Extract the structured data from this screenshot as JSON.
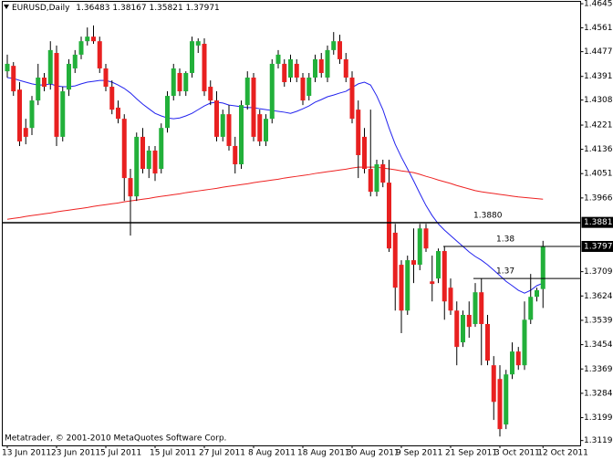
{
  "chart_data": {
    "type": "candlestick",
    "title": "EURUSD,Daily",
    "footer": "Metatrader, © 2001-2010 MetaQuotes Software Corp.",
    "categories": [
      "13 Jun 2011",
      null,
      null,
      null,
      null,
      null,
      null,
      null,
      "23 Jun 2011",
      null,
      null,
      null,
      null,
      null,
      null,
      null,
      "5 Jul 2011",
      null,
      null,
      null,
      null,
      null,
      null,
      null,
      "15 Jul 2011",
      null,
      null,
      null,
      null,
      null,
      null,
      null,
      "27 Jul 2011",
      null,
      null,
      null,
      null,
      null,
      null,
      null,
      "8 Aug 2011",
      null,
      null,
      null,
      null,
      null,
      null,
      null,
      "18 Aug 2011",
      null,
      null,
      null,
      null,
      null,
      null,
      null,
      "30 Aug 2011",
      null,
      null,
      null,
      null,
      null,
      null,
      null,
      "9 Sep 2011",
      null,
      null,
      null,
      null,
      null,
      null,
      null,
      "21 Sep 2011",
      null,
      null,
      null,
      null,
      null,
      null,
      null,
      "3 Oct 2011",
      null,
      null,
      null,
      null,
      null,
      null,
      "12 Oct 2011"
    ],
    "open": [
      1.4409,
      1.4428,
      1.4345,
      1.4211,
      1.4211,
      1.4307,
      1.4387,
      1.4365,
      1.4473,
      1.418,
      1.4345,
      1.4419,
      1.4467,
      1.4514,
      1.453,
      1.4514,
      1.4419,
      1.4355,
      1.4282,
      1.4243,
      1.4036,
      1.3972,
      1.418,
      1.4068,
      1.4132,
      1.4068,
      1.4211,
      1.4323,
      1.4403,
      1.4339,
      1.4403,
      1.4499,
      1.4505,
      1.4355,
      1.4307,
      1.418,
      1.4259,
      1.4148,
      1.4084,
      1.4291,
      1.4387,
      1.4259,
      1.4164,
      1.4243,
      1.4435,
      1.4435,
      1.4387,
      1.4435,
      1.4387,
      1.4323,
      1.4387,
      1.4451,
      1.4387,
      1.4483,
      1.4514,
      1.4451,
      1.4387,
      1.4275,
      1.418,
      1.4068,
      1.3988,
      1.4084,
      1.402,
      1.3845,
      1.3733,
      1.3573,
      1.3749,
      1.3733,
      1.386,
      1.3675,
      1.3685,
      1.3781,
      1.3653,
      1.3573,
      1.3462,
      1.3558,
      1.3526,
      1.3637,
      1.3526,
      1.3382,
      1.3334,
      1.3175,
      1.335,
      1.343,
      1.3382,
      1.3541,
      1.3621,
      1.36483
    ],
    "high": [
      1.4467,
      1.4441,
      1.4371,
      1.4243,
      1.4323,
      1.4435,
      1.4403,
      1.4514,
      1.4499,
      1.4355,
      1.4451,
      1.4483,
      1.453,
      1.4562,
      1.4569,
      1.453,
      1.4435,
      1.4377,
      1.4307,
      1.4259,
      1.4068,
      1.4195,
      1.4211,
      1.4148,
      1.4148,
      1.4227,
      1.4339,
      1.4435,
      1.4419,
      1.4409,
      1.453,
      1.4524,
      1.4524,
      1.4377,
      1.4339,
      1.4275,
      1.4291,
      1.418,
      1.4307,
      1.4409,
      1.4403,
      1.4275,
      1.4259,
      1.4451,
      1.4483,
      1.4451,
      1.4467,
      1.4451,
      1.4403,
      1.4403,
      1.4467,
      1.4473,
      1.4499,
      1.4546,
      1.4537,
      1.4473,
      1.4409,
      1.4307,
      1.4211,
      1.4275,
      1.41,
      1.41,
      1.41,
      1.3876,
      1.3749,
      1.3765,
      1.386,
      1.3876,
      1.3876,
      1.3765,
      1.379,
      1.3797,
      1.3685,
      1.3605,
      1.3573,
      1.3605,
      1.3669,
      1.3685,
      1.3558,
      1.3414,
      1.3382,
      1.3366,
      1.3462,
      1.3446,
      1.3605,
      1.3701,
      1.3653,
      1.38167
    ],
    "low": [
      1.4387,
      1.4323,
      1.4148,
      1.4154,
      1.4186,
      1.4291,
      1.4339,
      1.4345,
      1.4148,
      1.4164,
      1.4323,
      1.4403,
      1.4451,
      1.4499,
      1.4505,
      1.4403,
      1.4339,
      1.4259,
      1.4227,
      1.3956,
      1.3835,
      1.3956,
      1.4052,
      1.4036,
      1.4026,
      1.4052,
      1.4195,
      1.4307,
      1.4323,
      1.4323,
      1.4387,
      1.4473,
      1.4323,
      1.4291,
      1.4164,
      1.4164,
      1.4132,
      1.4052,
      1.4068,
      1.4275,
      1.4164,
      1.4148,
      1.4148,
      1.4227,
      1.4419,
      1.4355,
      1.4371,
      1.4371,
      1.4291,
      1.4307,
      1.4371,
      1.4387,
      1.4371,
      1.4467,
      1.4435,
      1.4371,
      1.4227,
      1.4036,
      1.4052,
      1.3972,
      1.3972,
      1.4004,
      1.3778,
      1.3573,
      1.3494,
      1.3558,
      1.3669,
      1.3714,
      1.3778,
      1.3605,
      1.3669,
      1.3541,
      1.3558,
      1.3382,
      1.3446,
      1.3478,
      1.3516,
      1.3382,
      1.3382,
      1.3191,
      1.3133,
      1.3159,
      1.3334,
      1.3366,
      1.3366,
      1.3526,
      1.3605,
      1.35821
    ],
    "close": [
      1.4435,
      1.4339,
      1.4164,
      1.418,
      1.4307,
      1.4387,
      1.4355,
      1.4483,
      1.418,
      1.4339,
      1.4435,
      1.4467,
      1.4514,
      1.453,
      1.4514,
      1.4419,
      1.4355,
      1.4275,
      1.4243,
      1.4036,
      1.3972,
      1.418,
      1.4068,
      1.4132,
      1.4052,
      1.4211,
      1.4323,
      1.4419,
      1.4339,
      1.4403,
      1.4514,
      1.4514,
      1.4339,
      1.4307,
      1.418,
      1.4259,
      1.4148,
      1.4084,
      1.4291,
      1.4387,
      1.418,
      1.4164,
      1.4243,
      1.4435,
      1.4467,
      1.4371,
      1.4451,
      1.4387,
      1.4307,
      1.4387,
      1.4451,
      1.4403,
      1.4483,
      1.4514,
      1.4451,
      1.4387,
      1.4243,
      1.4116,
      1.4068,
      1.3988,
      1.4084,
      1.402,
      1.379,
      1.3653,
      1.3573,
      1.3749,
      1.3733,
      1.386,
      1.379,
      1.3666,
      1.3781,
      1.3605,
      1.3573,
      1.3446,
      1.3558,
      1.3516,
      1.3637,
      1.3526,
      1.3398,
      1.3254,
      1.3159,
      1.335,
      1.343,
      1.3382,
      1.3541,
      1.3621,
      1.3644,
      1.37971
    ],
    "series": [
      {
        "color": "#2222ee",
        "values": [
          1.4387,
          1.4384,
          1.4377,
          1.4371,
          1.4365,
          1.4361,
          1.4361,
          1.4365,
          1.4358,
          1.4355,
          1.4355,
          1.4358,
          1.4365,
          1.4371,
          1.4374,
          1.4377,
          1.4377,
          1.4371,
          1.4361,
          1.4349,
          1.4333,
          1.4313,
          1.4294,
          1.4278,
          1.4262,
          1.4253,
          1.4246,
          1.4243,
          1.4246,
          1.4253,
          1.4262,
          1.4275,
          1.4288,
          1.4298,
          1.4301,
          1.4298,
          1.4291,
          1.4288,
          1.4285,
          1.4282,
          1.4282,
          1.4278,
          1.4275,
          1.4272,
          1.4269,
          1.4266,
          1.4262,
          1.4269,
          1.4278,
          1.4288,
          1.4301,
          1.431,
          1.432,
          1.4326,
          1.4333,
          1.4339,
          1.4352,
          1.4365,
          1.4371,
          1.4361,
          1.4323,
          1.4275,
          1.4211,
          1.4154,
          1.4109,
          1.4068,
          1.4026,
          1.3982,
          1.394,
          1.3905,
          1.3876,
          1.3854,
          1.3835,
          1.3816,
          1.3797,
          1.3778,
          1.3762,
          1.3749,
          1.3733,
          1.3714,
          1.3695,
          1.3675,
          1.366,
          1.3644,
          1.3634,
          1.3644,
          1.366,
          1.3669
        ]
      },
      {
        "color": "#ee2222",
        "values": [
          1.3892,
          1.3895,
          1.3898,
          1.3902,
          1.3905,
          1.3908,
          1.3911,
          1.3914,
          1.3918,
          1.3921,
          1.3924,
          1.3927,
          1.393,
          1.3933,
          1.3937,
          1.394,
          1.3943,
          1.3946,
          1.3949,
          1.3953,
          1.3956,
          1.3959,
          1.3962,
          1.3965,
          1.3969,
          1.3972,
          1.3975,
          1.3978,
          1.3981,
          1.3985,
          1.3988,
          1.3991,
          1.3994,
          1.3997,
          1.4,
          1.4004,
          1.4007,
          1.401,
          1.4013,
          1.4016,
          1.402,
          1.4023,
          1.4026,
          1.4029,
          1.4032,
          1.4036,
          1.4039,
          1.4042,
          1.4045,
          1.4048,
          1.4052,
          1.4055,
          1.4058,
          1.4061,
          1.4064,
          1.4067,
          1.4071,
          1.4074,
          1.4074,
          1.4074,
          1.4074,
          1.4071,
          1.4068,
          1.4065,
          1.4061,
          1.4058,
          1.4055,
          1.4049,
          1.4042,
          1.4036,
          1.4029,
          1.4023,
          1.4017,
          1.401,
          1.4004,
          1.3998,
          1.3992,
          1.3988,
          1.3985,
          1.3982,
          1.3979,
          1.3976,
          1.3973,
          1.397,
          1.3968,
          1.3966,
          1.3964,
          1.3962
        ]
      }
    ],
    "colors": {
      "up": "#22b03a",
      "down": "#e82020"
    },
    "ylim": [
      1.3102,
      1.4658
    ],
    "yticks": [
      {
        "value": 1.4645,
        "label": "1.46450"
      },
      {
        "value": 1.4561,
        "label": "1.45610"
      },
      1.44775,
      {
        "value": 1.4391,
        "label": "1.43910"
      },
      1.43085,
      {
        "value": 1.4221,
        "label": "1.42210"
      },
      1.41365,
      1.40515,
      1.39665,
      {
        "value": 1.3709,
        "label": "1.37090"
      },
      {
        "value": 1.3624,
        "label": "1.36240"
      },
      {
        "value": 1.3539,
        "label": "1.35390"
      },
      {
        "value": 1.3454,
        "label": "1.34540"
      },
      {
        "value": 1.3369,
        "label": "1.33690"
      },
      {
        "value": 1.3284,
        "label": "1.32840"
      },
      {
        "value": 1.3199,
        "label": "1.31990"
      },
      {
        "value": 1.3119,
        "label": "1.31190"
      }
    ],
    "levels": [
      {
        "value": 1.388,
        "label": "1.3880",
        "axis_label": 1.38811
      },
      {
        "value": 1.3797,
        "label": "1.38"
      },
      {
        "value": 1.3685,
        "label": "1.37"
      }
    ]
  }
}
